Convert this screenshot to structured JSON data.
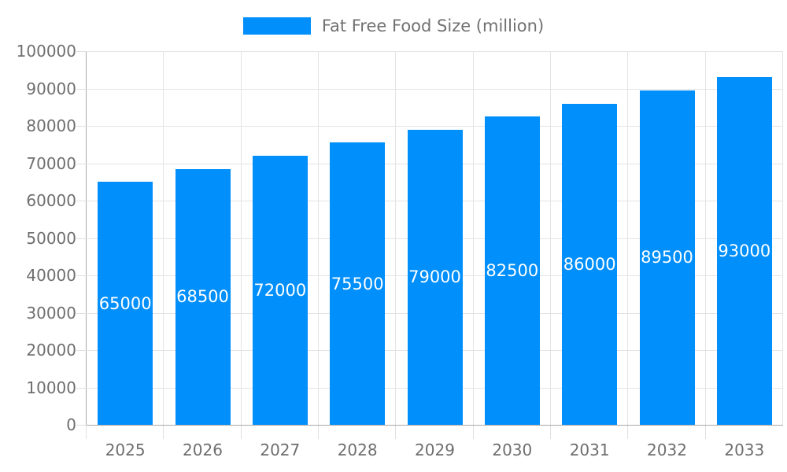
{
  "chart_data": {
    "type": "bar",
    "title": "Fat Free Food Size (million)",
    "categories": [
      "2025",
      "2026",
      "2027",
      "2028",
      "2029",
      "2030",
      "2031",
      "2032",
      "2033"
    ],
    "values": [
      65000,
      68500,
      72000,
      75500,
      79000,
      82500,
      86000,
      89500,
      93000
    ],
    "value_labels": [
      "65000",
      "68500",
      "72000",
      "75500",
      "79000",
      "82500",
      "86000",
      "89500",
      "93000"
    ],
    "xlabel": "",
    "ylabel": "",
    "ylim": [
      0,
      100000
    ],
    "y_ticks": [
      0,
      10000,
      20000,
      30000,
      40000,
      50000,
      60000,
      70000,
      80000,
      90000,
      100000
    ],
    "y_tick_labels": [
      "0",
      "10000",
      "20000",
      "30000",
      "40000",
      "50000",
      "60000",
      "70000",
      "80000",
      "90000",
      "100000"
    ],
    "grid": true,
    "legend": {
      "position": "top",
      "label": "Fat Free Food Size (million)"
    },
    "colors": {
      "bar": "#008FFB",
      "grid": "#e4e4e4",
      "axis": "#a8a8a8",
      "tick": "#e0e0e0",
      "axis_label": "#6e6e6e",
      "legend_label": "#717171",
      "value_label": "#ffffff",
      "background": "#ffffff"
    }
  }
}
